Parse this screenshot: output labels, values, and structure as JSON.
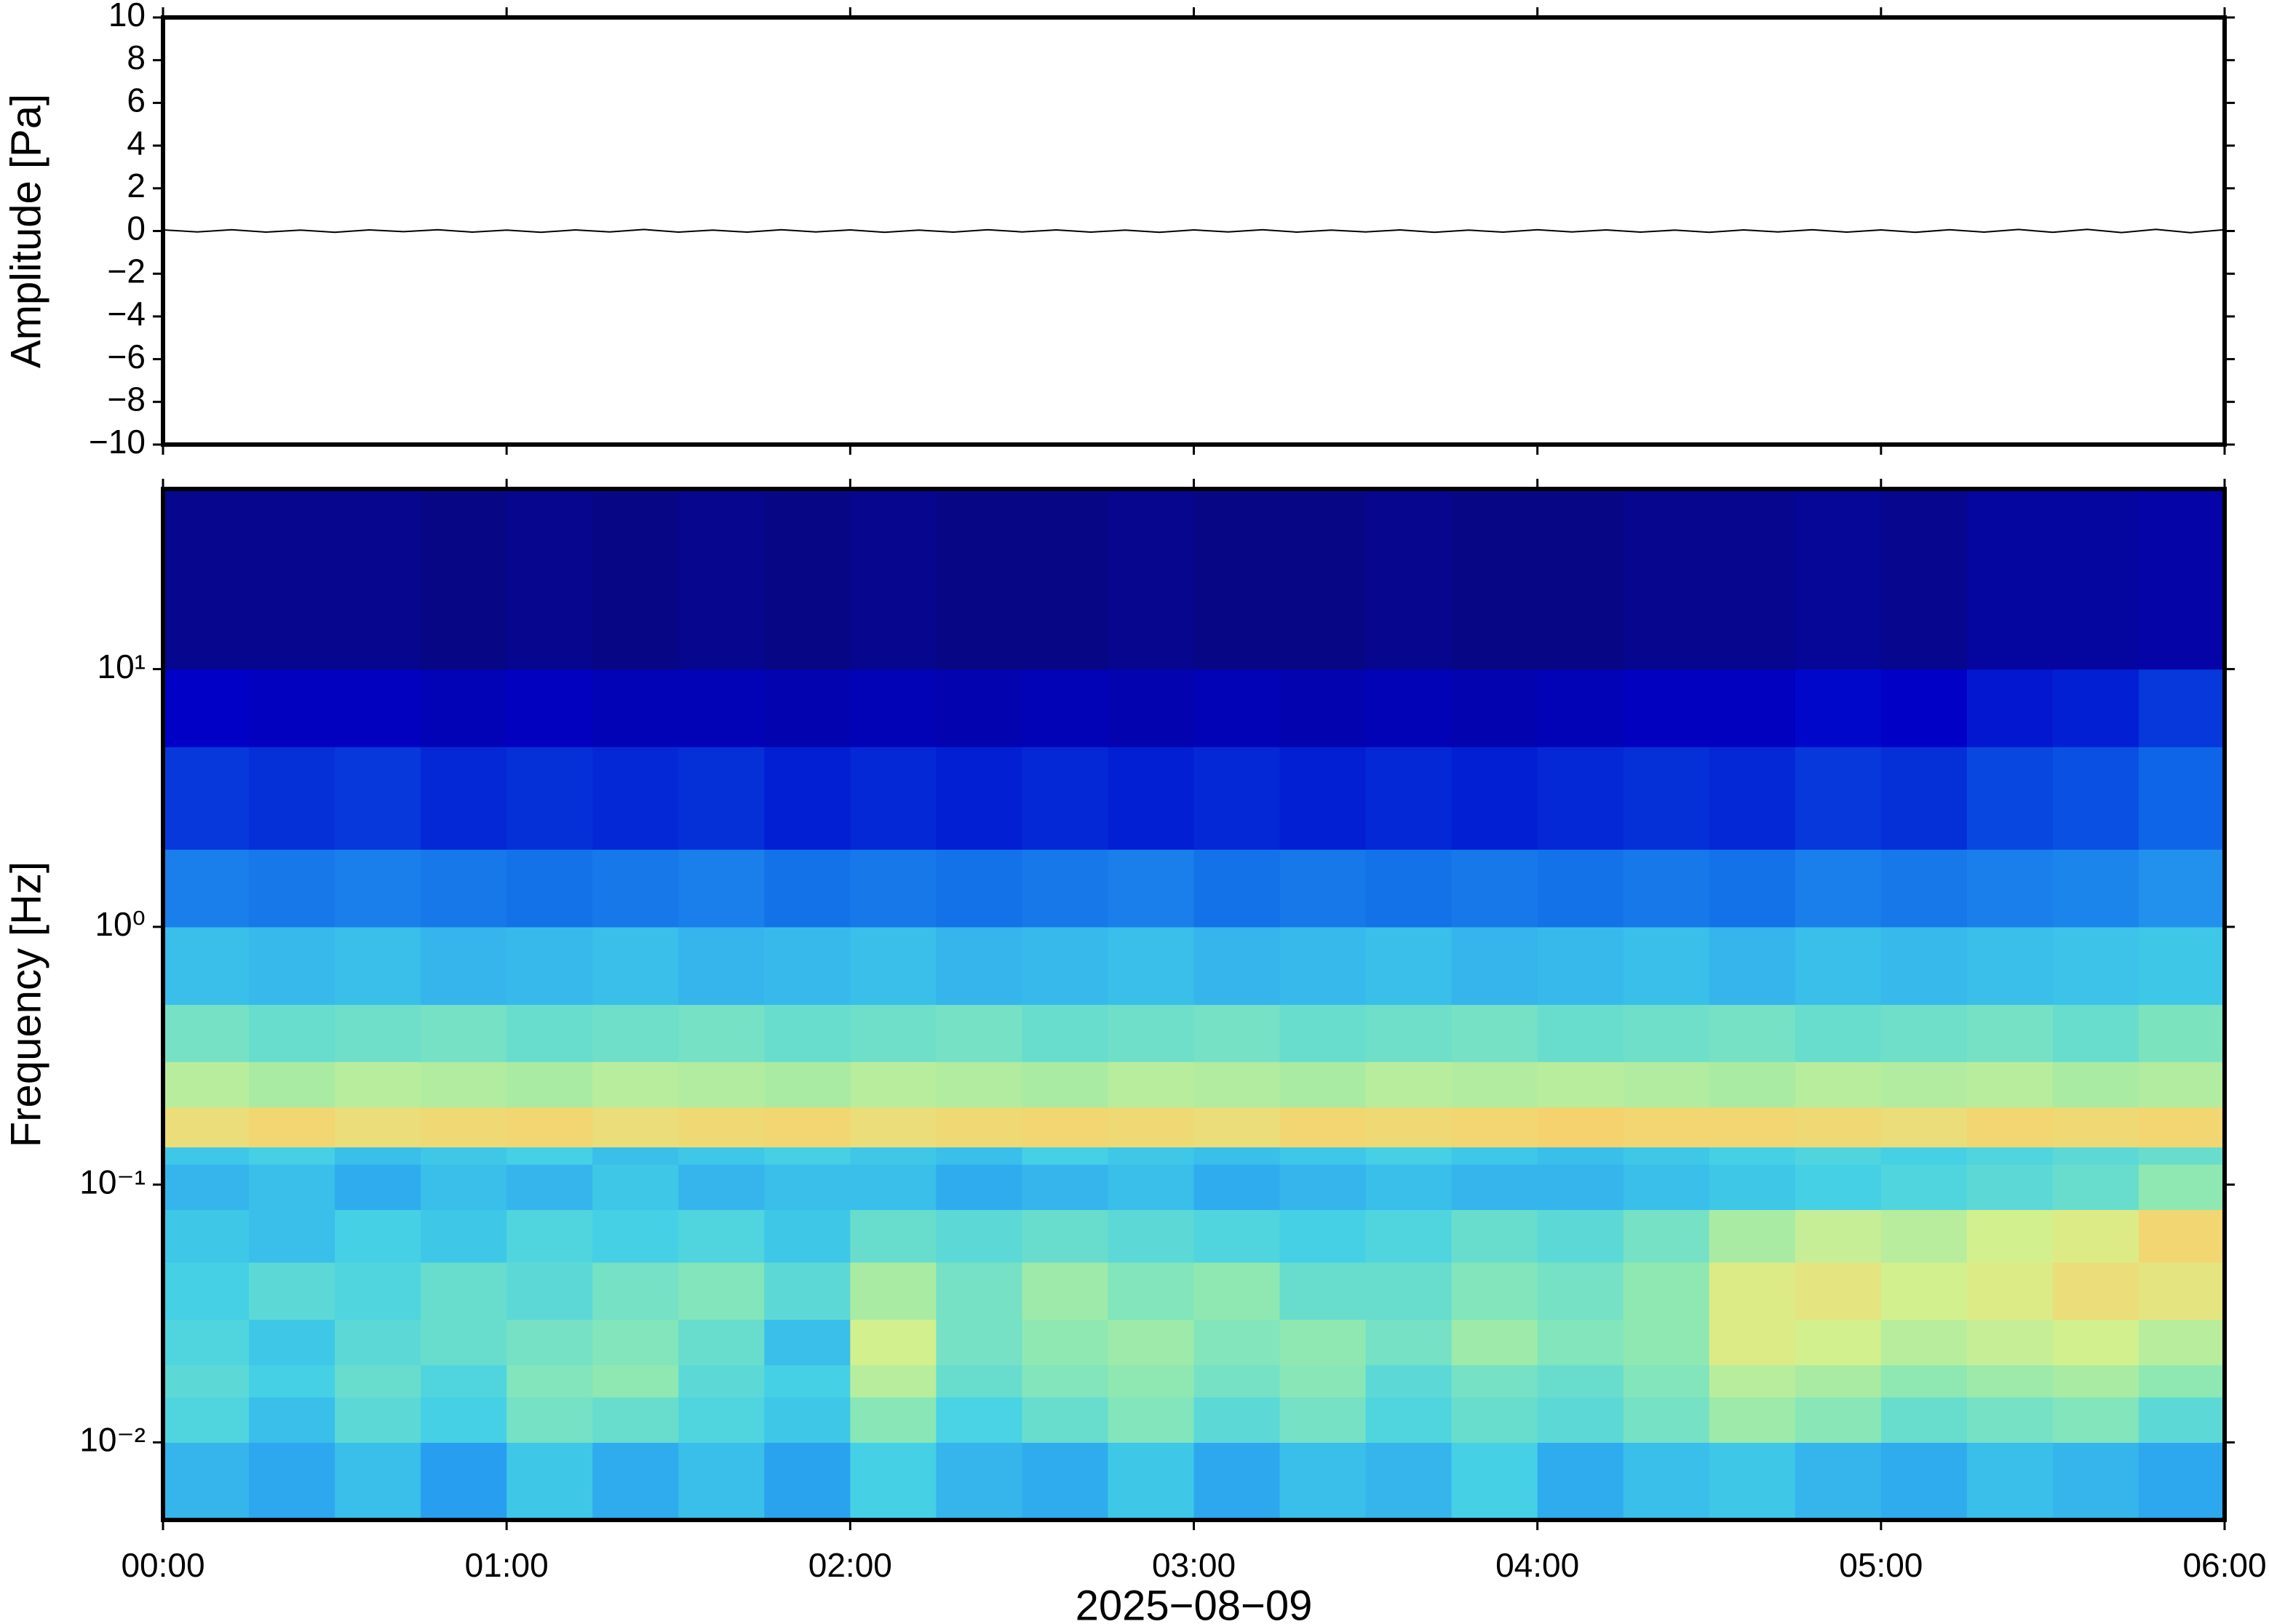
{
  "chart_data": [
    {
      "type": "line",
      "ylabel": "Amplitude [Pa]",
      "xlim": [
        0,
        6
      ],
      "xticks": [
        0,
        1,
        2,
        3,
        4,
        5,
        6
      ],
      "ylim": [
        -10,
        10
      ],
      "yticks": [
        {
          "value": -10,
          "label": "−10"
        },
        {
          "value": -8,
          "label": "−8"
        },
        {
          "value": -6,
          "label": "−6"
        },
        {
          "value": -4,
          "label": "−4"
        },
        {
          "value": -2,
          "label": "−2"
        },
        0,
        2,
        4,
        6,
        8,
        10
      ],
      "color": "#000000",
      "x": [
        0,
        0.1,
        0.2,
        0.3,
        0.4,
        0.5,
        0.6,
        0.7,
        0.8,
        0.9,
        1,
        1.1,
        1.2,
        1.3,
        1.4,
        1.5,
        1.6,
        1.7,
        1.8,
        1.9,
        2,
        2.1,
        2.2,
        2.3,
        2.4,
        2.5,
        2.6,
        2.7,
        2.8,
        2.9,
        3,
        3.1,
        3.2,
        3.3,
        3.4,
        3.5,
        3.6,
        3.7,
        3.8,
        3.9,
        4,
        4.1,
        4.2,
        4.3,
        4.4,
        4.5,
        4.6,
        4.7,
        4.8,
        4.9,
        5,
        5.1,
        5.2,
        5.3,
        5.4,
        5.5,
        5.6,
        5.7,
        5.8,
        5.9,
        6
      ],
      "values": [
        0.05,
        -0.04,
        0.06,
        -0.05,
        0.04,
        -0.06,
        0.05,
        -0.03,
        0.06,
        -0.05,
        0.04,
        -0.06,
        0.05,
        -0.04,
        0.07,
        -0.05,
        0.04,
        -0.05,
        0.06,
        -0.04,
        0.05,
        -0.06,
        0.04,
        -0.05,
        0.06,
        -0.04,
        0.05,
        -0.05,
        0.04,
        -0.06,
        0.05,
        -0.04,
        0.06,
        -0.05,
        0.04,
        -0.04,
        0.05,
        -0.06,
        0.04,
        -0.05,
        0.06,
        -0.04,
        0.05,
        -0.05,
        0.04,
        -0.06,
        0.05,
        -0.04,
        0.06,
        -0.05,
        0.05,
        -0.06,
        0.06,
        -0.05,
        0.07,
        -0.06,
        0.08,
        -0.07,
        0.08,
        -0.08,
        0.06
      ]
    },
    {
      "type": "heatmap",
      "ylabel": "Frequency [Hz]",
      "xlabel": "2025−08−09",
      "xlim": [
        0,
        6
      ],
      "xticks": [
        {
          "value": 0,
          "label": "00:00"
        },
        {
          "value": 1,
          "label": "01:00"
        },
        {
          "value": 2,
          "label": "02:00"
        },
        {
          "value": 3,
          "label": "03:00"
        },
        {
          "value": 4,
          "label": "04:00"
        },
        {
          "value": 5,
          "label": "05:00"
        },
        {
          "value": 6,
          "label": "06:00"
        }
      ],
      "ylim": [
        0.005,
        50
      ],
      "log_y": true,
      "yticks": [
        {
          "value": 0.01,
          "label": "10⁻²"
        },
        {
          "value": 0.1,
          "label": "10⁻¹"
        },
        {
          "value": 1,
          "label": "10⁰"
        },
        {
          "value": 10,
          "label": "10¹"
        }
      ],
      "zlim": [
        0,
        100
      ],
      "colormap": [
        "#0a0a6e",
        "#0000c8",
        "#0a5ae6",
        "#28a0f0",
        "#46d2e6",
        "#8ce8b4",
        "#d8f08c",
        "#ffc864",
        "#ff8c3c",
        "#c83214"
      ],
      "xbins": [
        0,
        0.25,
        0.5,
        0.75,
        1,
        1.25,
        1.5,
        1.75,
        2,
        2.25,
        2.5,
        2.75,
        3,
        3.25,
        3.5,
        3.75,
        4,
        4.25,
        4.5,
        4.75,
        5,
        5.25,
        5.5,
        5.75,
        6
      ],
      "ybins": [
        0.005,
        0.01,
        0.015,
        0.02,
        0.03,
        0.05,
        0.08,
        0.12,
        0.14,
        0.2,
        0.3,
        0.5,
        1,
        2,
        5,
        10,
        50
      ],
      "z": [
        [
          38,
          35,
          40,
          33,
          42,
          36,
          40,
          34,
          44,
          38,
          36,
          42,
          35,
          40,
          38,
          44,
          36,
          40,
          42,
          38,
          36,
          40,
          38,
          35
        ],
        [
          46,
          40,
          48,
          44,
          52,
          50,
          46,
          42,
          55,
          45,
          50,
          54,
          48,
          52,
          46,
          50,
          48,
          52,
          58,
          55,
          50,
          52,
          54,
          48
        ],
        [
          48,
          44,
          50,
          46,
          54,
          56,
          48,
          44,
          62,
          50,
          54,
          56,
          52,
          55,
          48,
          52,
          50,
          54,
          62,
          60,
          56,
          58,
          60,
          56
        ],
        [
          46,
          42,
          48,
          50,
          52,
          54,
          50,
          40,
          66,
          52,
          56,
          58,
          54,
          56,
          52,
          58,
          54,
          56,
          68,
          66,
          62,
          64,
          66,
          62
        ],
        [
          44,
          48,
          46,
          50,
          48,
          52,
          54,
          48,
          60,
          52,
          58,
          54,
          56,
          50,
          50,
          54,
          52,
          56,
          68,
          70,
          66,
          68,
          72,
          70
        ],
        [
          42,
          40,
          44,
          42,
          46,
          44,
          46,
          42,
          50,
          48,
          50,
          48,
          46,
          44,
          46,
          50,
          48,
          52,
          60,
          64,
          62,
          66,
          68,
          74
        ],
        [
          38,
          40,
          36,
          40,
          38,
          42,
          38,
          40,
          40,
          36,
          38,
          40,
          36,
          38,
          40,
          38,
          38,
          40,
          42,
          44,
          46,
          48,
          50,
          56
        ],
        [
          42,
          44,
          40,
          42,
          44,
          40,
          42,
          44,
          42,
          40,
          44,
          42,
          40,
          42,
          44,
          42,
          40,
          42,
          44,
          46,
          44,
          46,
          48,
          50
        ],
        [
          72,
          74,
          72,
          73,
          74,
          72,
          73,
          74,
          72,
          73,
          74,
          73,
          72,
          74,
          73,
          74,
          75,
          74,
          74,
          73,
          72,
          74,
          73,
          74
        ],
        [
          62,
          60,
          62,
          61,
          60,
          62,
          61,
          60,
          62,
          61,
          60,
          62,
          61,
          60,
          62,
          61,
          62,
          61,
          60,
          62,
          61,
          62,
          60,
          61
        ],
        [
          52,
          50,
          51,
          52,
          50,
          51,
          52,
          50,
          51,
          52,
          50,
          51,
          52,
          50,
          51,
          52,
          50,
          51,
          52,
          50,
          51,
          52,
          50,
          53
        ],
        [
          40,
          39,
          40,
          38,
          39,
          40,
          38,
          39,
          40,
          38,
          39,
          40,
          38,
          39,
          40,
          38,
          39,
          40,
          38,
          40,
          39,
          40,
          41,
          42
        ],
        [
          28,
          27,
          28,
          27,
          26,
          27,
          28,
          26,
          27,
          26,
          27,
          28,
          26,
          27,
          26,
          27,
          26,
          27,
          26,
          28,
          27,
          28,
          29,
          31
        ],
        [
          18,
          17,
          18,
          16,
          17,
          16,
          17,
          15,
          16,
          15,
          16,
          15,
          16,
          15,
          16,
          15,
          16,
          17,
          16,
          18,
          17,
          20,
          21,
          24
        ],
        [
          11,
          10,
          10,
          9,
          10,
          9,
          9,
          8,
          9,
          8,
          9,
          8,
          9,
          8,
          9,
          8,
          9,
          10,
          10,
          12,
          11,
          14,
          15,
          18
        ],
        [
          4,
          4,
          4,
          3,
          4,
          3,
          4,
          3,
          4,
          3,
          3,
          4,
          3,
          3,
          4,
          3,
          3,
          4,
          4,
          5,
          4,
          6,
          6,
          7
        ]
      ]
    }
  ]
}
